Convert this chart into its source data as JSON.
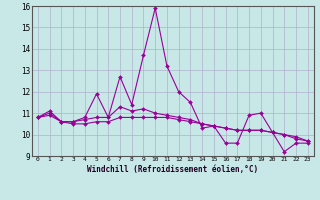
{
  "xlabel": "Windchill (Refroidissement éolien,°C)",
  "background_color": "#c8e8e8",
  "plot_bg_color": "#c8e8e8",
  "grid_color": "#b0b0cc",
  "line_color": "#990099",
  "xlim": [
    -0.5,
    23.5
  ],
  "ylim": [
    9,
    16
  ],
  "yticks": [
    9,
    10,
    11,
    12,
    13,
    14,
    15,
    16
  ],
  "xticks": [
    0,
    1,
    2,
    3,
    4,
    5,
    6,
    7,
    8,
    9,
    10,
    11,
    12,
    13,
    14,
    15,
    16,
    17,
    18,
    19,
    20,
    21,
    22,
    23
  ],
  "series1": [
    10.8,
    11.1,
    10.6,
    10.6,
    10.8,
    11.9,
    10.8,
    12.7,
    11.4,
    13.7,
    15.9,
    13.2,
    12.0,
    11.5,
    10.3,
    10.4,
    9.6,
    9.6,
    10.9,
    11.0,
    10.1,
    9.2,
    9.6,
    9.6
  ],
  "series2": [
    10.8,
    11.0,
    10.6,
    10.6,
    10.7,
    10.8,
    10.8,
    11.3,
    11.1,
    11.2,
    11.0,
    10.9,
    10.8,
    10.7,
    10.5,
    10.4,
    10.3,
    10.2,
    10.2,
    10.2,
    10.1,
    10.0,
    9.9,
    9.7
  ],
  "series3": [
    10.8,
    10.9,
    10.6,
    10.5,
    10.5,
    10.6,
    10.6,
    10.8,
    10.8,
    10.8,
    10.8,
    10.8,
    10.7,
    10.6,
    10.5,
    10.4,
    10.3,
    10.2,
    10.2,
    10.2,
    10.1,
    10.0,
    9.8,
    9.7
  ]
}
